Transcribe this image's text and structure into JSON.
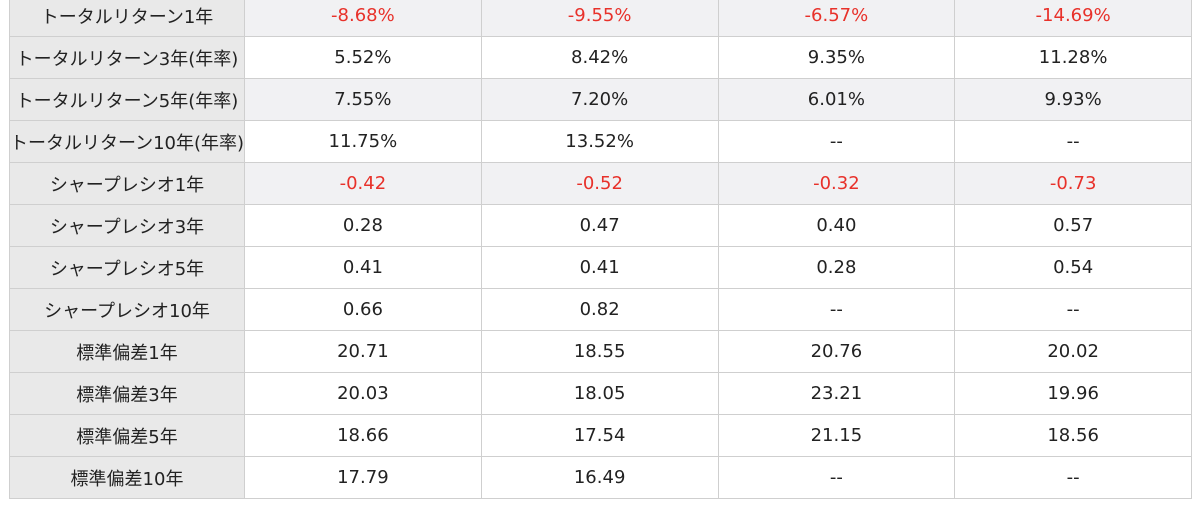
{
  "colors": {
    "negative": "#e8312a",
    "label_bg": "#e9e9e9",
    "shaded_row_bg": "#f1f1f3",
    "border": "#cfcfcf"
  },
  "rows": [
    {
      "label": "トータルリターン1年",
      "values": [
        "-8.68%",
        "-9.55%",
        "-6.57%",
        "-14.69%"
      ]
    },
    {
      "label": "トータルリターン3年(年率)",
      "values": [
        "5.52%",
        "8.42%",
        "9.35%",
        "11.28%"
      ]
    },
    {
      "label": "トータルリターン5年(年率)",
      "values": [
        "7.55%",
        "7.20%",
        "6.01%",
        "9.93%"
      ]
    },
    {
      "label": "トータルリターン10年(年率)",
      "values": [
        "11.75%",
        "13.52%",
        "--",
        "--"
      ]
    },
    {
      "label": "シャープレシオ1年",
      "values": [
        "-0.42",
        "-0.52",
        "-0.32",
        "-0.73"
      ]
    },
    {
      "label": "シャープレシオ3年",
      "values": [
        "0.28",
        "0.47",
        "0.40",
        "0.57"
      ]
    },
    {
      "label": "シャープレシオ5年",
      "values": [
        "0.41",
        "0.41",
        "0.28",
        "0.54"
      ]
    },
    {
      "label": "シャープレシオ10年",
      "values": [
        "0.66",
        "0.82",
        "--",
        "--"
      ]
    },
    {
      "label": "標準偏差1年",
      "values": [
        "20.71",
        "18.55",
        "20.76",
        "20.02"
      ]
    },
    {
      "label": "標準偏差3年",
      "values": [
        "20.03",
        "18.05",
        "23.21",
        "19.96"
      ]
    },
    {
      "label": "標準偏差5年",
      "values": [
        "18.66",
        "17.54",
        "21.15",
        "18.56"
      ]
    },
    {
      "label": "標準偏差10年",
      "values": [
        "17.79",
        "16.49",
        "--",
        "--"
      ]
    }
  ]
}
